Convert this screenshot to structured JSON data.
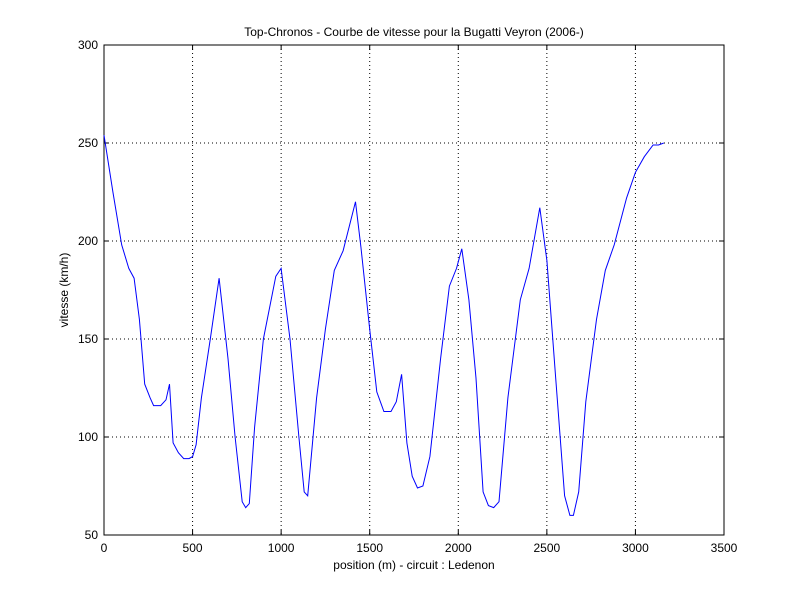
{
  "chart_data": {
    "type": "line",
    "title": "Top-Chronos - Courbe de vitesse pour la Bugatti Veyron (2006-)",
    "xlabel": "position (m) - circuit : Ledenon",
    "ylabel": "vitesse (km/h)",
    "xlim": [
      0,
      3500
    ],
    "ylim": [
      50,
      300
    ],
    "xticks": [
      0,
      500,
      1000,
      1500,
      2000,
      2500,
      3000,
      3500
    ],
    "yticks": [
      50,
      100,
      150,
      200,
      250,
      300
    ],
    "xtick_labels": [
      "0",
      "500",
      "1000",
      "1500",
      "2000",
      "2500",
      "3000",
      "3500"
    ],
    "ytick_labels": [
      "50",
      "100",
      "150",
      "200",
      "250",
      "300"
    ],
    "grid": true,
    "series": [
      {
        "color": "#0000ff",
        "x": [
          0,
          50,
          100,
          140,
          170,
          200,
          230,
          260,
          280,
          320,
          350,
          370,
          390,
          420,
          450,
          480,
          500,
          520,
          550,
          600,
          650,
          700,
          740,
          780,
          800,
          820,
          850,
          900,
          970,
          1000,
          1050,
          1100,
          1130,
          1150,
          1200,
          1250,
          1300,
          1350,
          1420,
          1450,
          1500,
          1540,
          1580,
          1620,
          1650,
          1680,
          1710,
          1740,
          1770,
          1800,
          1840,
          1900,
          1950,
          1990,
          2020,
          2060,
          2100,
          2140,
          2170,
          2200,
          2230,
          2280,
          2350,
          2400,
          2460,
          2500,
          2550,
          2600,
          2630,
          2650,
          2680,
          2720,
          2780,
          2830,
          2880,
          2950,
          3000,
          3050,
          3100,
          3130,
          3160
        ],
        "y": [
          254,
          225,
          198,
          186,
          181,
          160,
          127,
          120,
          116,
          116,
          119,
          127,
          97,
          92,
          89,
          89,
          90,
          96,
          120,
          150,
          181,
          140,
          100,
          67,
          64,
          66,
          105,
          150,
          182,
          186,
          150,
          100,
          72,
          70,
          120,
          155,
          185,
          195,
          220,
          197,
          155,
          123,
          113,
          113,
          118,
          132,
          97,
          80,
          74,
          75,
          90,
          140,
          177,
          186,
          196,
          170,
          130,
          72,
          65,
          64,
          67,
          120,
          170,
          186,
          217,
          190,
          130,
          70,
          60,
          60,
          72,
          118,
          160,
          185,
          198,
          222,
          235,
          243,
          249,
          249,
          250
        ]
      }
    ]
  }
}
